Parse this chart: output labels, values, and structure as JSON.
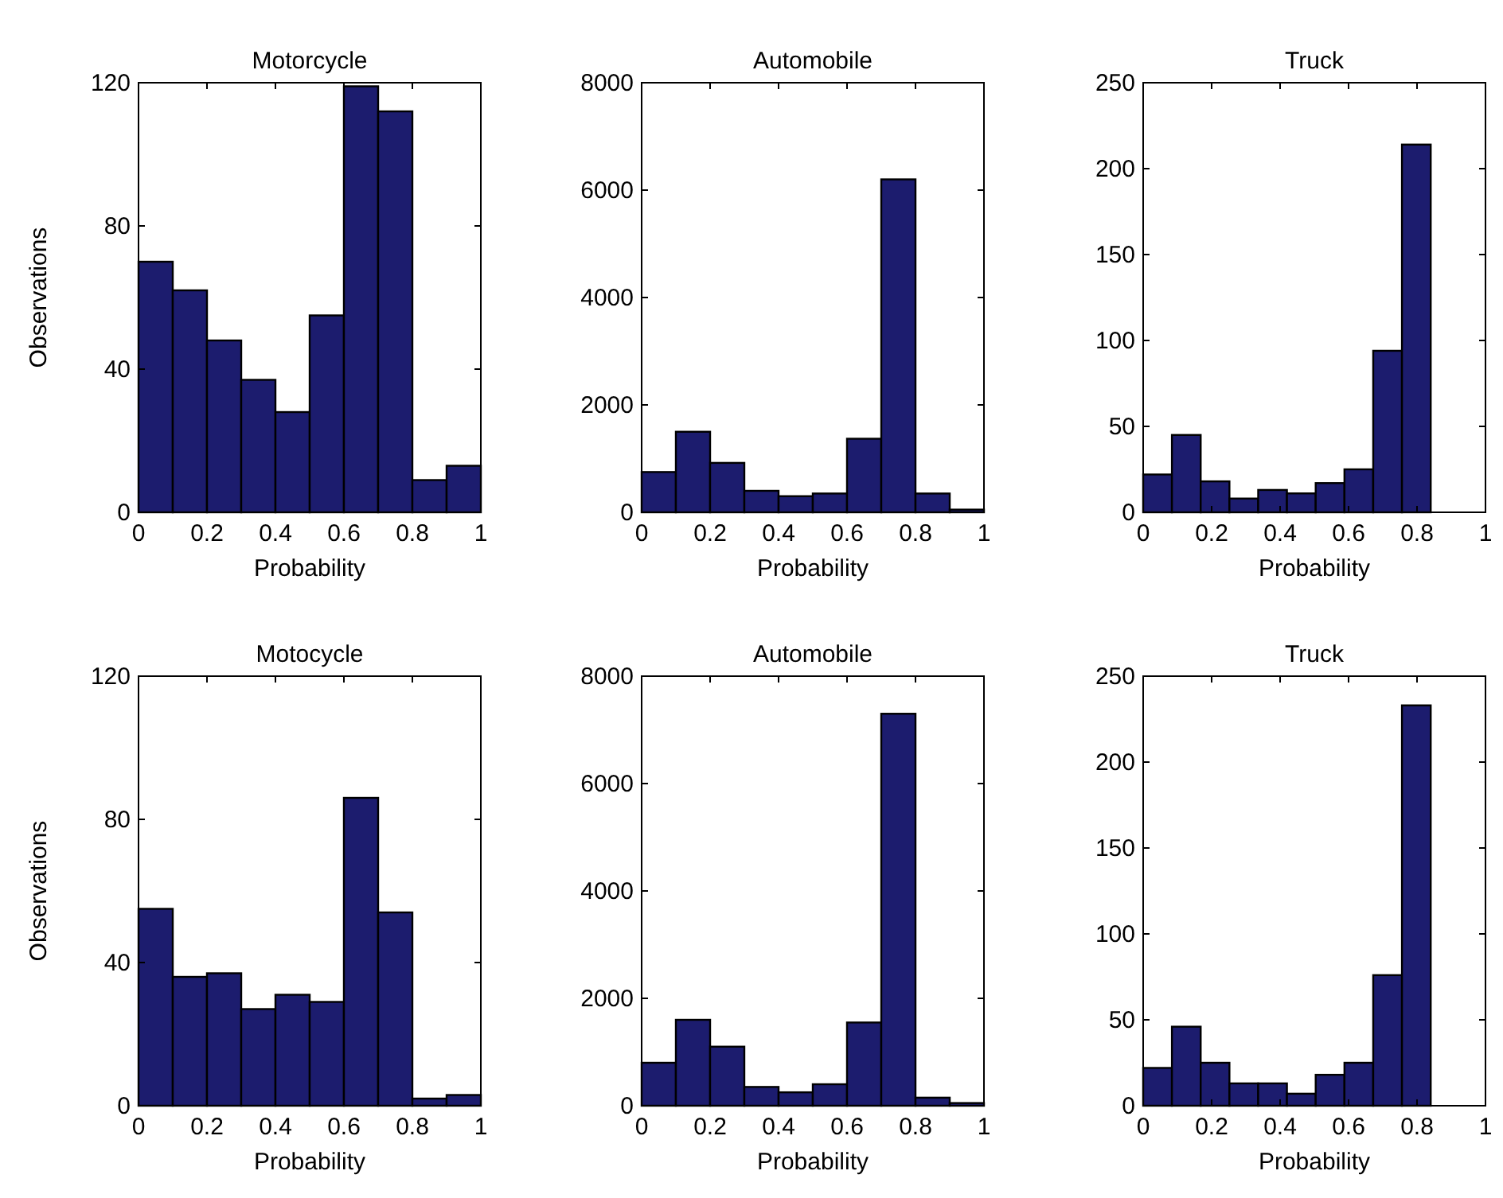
{
  "chart_data": [
    {
      "type": "histogram",
      "title": "Motorcycle",
      "xlabel": "Probability",
      "ylabel": "Observations",
      "bins": [
        0,
        0.1,
        0.2,
        0.3,
        0.4,
        0.5,
        0.6,
        0.7,
        0.8,
        0.9,
        1
      ],
      "values": [
        70,
        62,
        48,
        37,
        28,
        55,
        119,
        112,
        9,
        13
      ],
      "color": "#1c1c6e",
      "xlim": [
        0,
        1
      ],
      "ylim": [
        0,
        120
      ],
      "xticks": [
        0,
        0.2,
        0.4,
        0.6,
        0.8,
        1
      ],
      "yticks": [
        0,
        40,
        80,
        120
      ]
    },
    {
      "type": "histogram",
      "title": "Automobile",
      "xlabel": "Probability",
      "bins": [
        0,
        0.1,
        0.2,
        0.3,
        0.4,
        0.5,
        0.6,
        0.7,
        0.8,
        0.9,
        1
      ],
      "values": [
        750,
        1500,
        920,
        400,
        300,
        350,
        1370,
        6200,
        350,
        50
      ],
      "color": "#1c1c6e",
      "xlim": [
        0,
        1
      ],
      "ylim": [
        0,
        8000
      ],
      "xticks": [
        0,
        0.2,
        0.4,
        0.6,
        0.8,
        1
      ],
      "yticks": [
        0,
        2000,
        4000,
        6000,
        8000
      ]
    },
    {
      "type": "histogram",
      "title": "Truck",
      "xlabel": "Probability",
      "bins": [
        0,
        0.084,
        0.168,
        0.252,
        0.336,
        0.42,
        0.504,
        0.588,
        0.672,
        0.756,
        0.84
      ],
      "values": [
        22,
        45,
        18,
        8,
        13,
        11,
        17,
        25,
        94,
        214
      ],
      "color": "#1c1c6e",
      "xlim": [
        0,
        1
      ],
      "ylim": [
        0,
        250
      ],
      "xticks": [
        0,
        0.2,
        0.4,
        0.6,
        0.8,
        1
      ],
      "yticks": [
        0,
        50,
        100,
        150,
        200,
        250
      ]
    },
    {
      "type": "histogram",
      "title": "Motocycle",
      "xlabel": "Probability",
      "ylabel": "Observations",
      "bins": [
        0,
        0.1,
        0.2,
        0.3,
        0.4,
        0.5,
        0.6,
        0.7,
        0.8,
        0.9,
        1
      ],
      "values": [
        55,
        36,
        37,
        27,
        31,
        29,
        86,
        54,
        2,
        3
      ],
      "color": "#1c1c6e",
      "xlim": [
        0,
        1
      ],
      "ylim": [
        0,
        120
      ],
      "xticks": [
        0,
        0.2,
        0.4,
        0.6,
        0.8,
        1
      ],
      "yticks": [
        0,
        40,
        80,
        120
      ]
    },
    {
      "type": "histogram",
      "title": "Automobile",
      "xlabel": "Probability",
      "bins": [
        0,
        0.1,
        0.2,
        0.3,
        0.4,
        0.5,
        0.6,
        0.7,
        0.8,
        0.9,
        1
      ],
      "values": [
        800,
        1600,
        1100,
        350,
        250,
        400,
        1550,
        7300,
        150,
        50
      ],
      "color": "#1c1c6e",
      "xlim": [
        0,
        1
      ],
      "ylim": [
        0,
        8000
      ],
      "xticks": [
        0,
        0.2,
        0.4,
        0.6,
        0.8,
        1
      ],
      "yticks": [
        0,
        2000,
        4000,
        6000,
        8000
      ]
    },
    {
      "type": "histogram",
      "title": "Truck",
      "xlabel": "Probability",
      "bins": [
        0,
        0.084,
        0.168,
        0.252,
        0.336,
        0.42,
        0.504,
        0.588,
        0.672,
        0.756,
        0.84
      ],
      "values": [
        22,
        46,
        25,
        13,
        13,
        7,
        18,
        25,
        76,
        233
      ],
      "color": "#1c1c6e",
      "xlim": [
        0,
        1
      ],
      "ylim": [
        0,
        250
      ],
      "xticks": [
        0,
        0.2,
        0.4,
        0.6,
        0.8,
        1
      ],
      "yticks": [
        0,
        50,
        100,
        150,
        200,
        250
      ]
    }
  ]
}
